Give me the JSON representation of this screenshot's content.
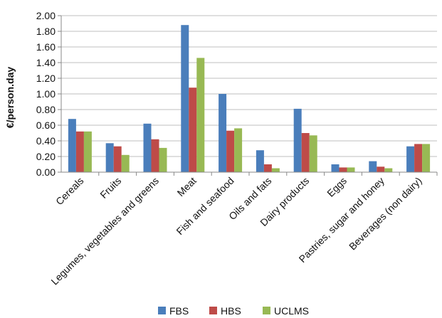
{
  "chart_data": {
    "type": "bar",
    "ylabel": "€/person.day",
    "xlabel": "",
    "ylim": [
      0,
      2.0
    ],
    "yticks": [
      "0.00",
      "0.20",
      "0.40",
      "0.60",
      "0.80",
      "1.00",
      "1.20",
      "1.40",
      "1.60",
      "1.80",
      "2.00"
    ],
    "grid": true,
    "legend_position": "bottom",
    "categories": [
      "Cereals",
      "Fruits",
      "Legumes, vegetables and greens",
      "Meat",
      "Fish and seafood",
      "Oils and fats",
      "Dairy products",
      "Eggs",
      "Pastries, sugar and honey",
      "Beverages (non dairy)"
    ],
    "series": [
      {
        "name": "FBS",
        "color": "#4a7ebb",
        "values": [
          0.68,
          0.37,
          0.62,
          1.88,
          1.0,
          0.28,
          0.81,
          0.1,
          0.14,
          0.33
        ]
      },
      {
        "name": "HBS",
        "color": "#be4b48",
        "values": [
          0.52,
          0.33,
          0.42,
          1.08,
          0.53,
          0.1,
          0.5,
          0.06,
          0.07,
          0.36
        ]
      },
      {
        "name": "UCLMS",
        "color": "#98b954",
        "values": [
          0.52,
          0.22,
          0.31,
          1.46,
          0.56,
          0.05,
          0.47,
          0.06,
          0.05,
          0.36
        ]
      }
    ]
  }
}
